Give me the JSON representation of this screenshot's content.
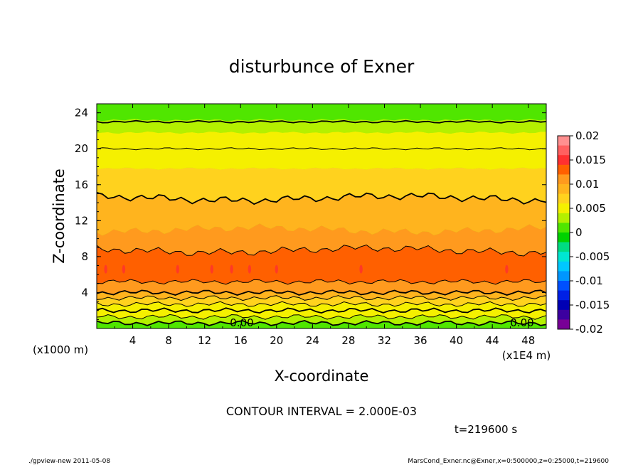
{
  "chart_data": {
    "type": "contour",
    "title": "disturbunce of Exner",
    "xlabel": "X-coordinate",
    "ylabel": "Z-coordinate",
    "x_units": "(x1E4 m)",
    "y_units": "(x1000 m)",
    "xlim": [
      0,
      50
    ],
    "ylim": [
      0,
      25
    ],
    "x_ticks": [
      4,
      8,
      12,
      16,
      20,
      24,
      28,
      32,
      36,
      40,
      44,
      48
    ],
    "y_ticks": [
      4,
      8,
      12,
      16,
      20,
      24
    ],
    "contour_interval_text": "CONTOUR INTERVAL = 2.000E-03",
    "time_text": "t=219600 s",
    "zero_labels": [
      "0.00",
      "0.00"
    ],
    "colorbar": {
      "ticks": [
        "0.02",
        "0.015",
        "0.01",
        "0.005",
        "0",
        "-0.005",
        "-0.01",
        "-0.015",
        "-0.02"
      ],
      "levels": [
        {
          "lo": 0.018,
          "hi": 0.02,
          "color": "#ff9090"
        },
        {
          "lo": 0.016,
          "hi": 0.018,
          "color": "#ff6060"
        },
        {
          "lo": 0.014,
          "hi": 0.016,
          "color": "#ff3030"
        },
        {
          "lo": 0.012,
          "hi": 0.014,
          "color": "#ff6000"
        },
        {
          "lo": 0.01,
          "hi": 0.012,
          "color": "#ff9a1e"
        },
        {
          "lo": 0.008,
          "hi": 0.01,
          "color": "#ffb41e"
        },
        {
          "lo": 0.006,
          "hi": 0.008,
          "color": "#ffd21e"
        },
        {
          "lo": 0.004,
          "hi": 0.006,
          "color": "#f5f000"
        },
        {
          "lo": 0.002,
          "hi": 0.004,
          "color": "#b4f000"
        },
        {
          "lo": 0.0,
          "hi": 0.002,
          "color": "#50e600"
        },
        {
          "lo": -0.002,
          "hi": 0.0,
          "color": "#00d200"
        },
        {
          "lo": -0.004,
          "hi": -0.002,
          "color": "#00dc82"
        },
        {
          "lo": -0.006,
          "hi": -0.004,
          "color": "#00e6d2"
        },
        {
          "lo": -0.008,
          "hi": -0.006,
          "color": "#00c8ff"
        },
        {
          "lo": -0.01,
          "hi": -0.008,
          "color": "#0096ff"
        },
        {
          "lo": -0.012,
          "hi": -0.01,
          "color": "#0050ff"
        },
        {
          "lo": -0.014,
          "hi": -0.012,
          "color": "#0020e6"
        },
        {
          "lo": -0.016,
          "hi": -0.014,
          "color": "#0000b4"
        },
        {
          "lo": -0.018,
          "hi": -0.016,
          "color": "#3c00a0"
        },
        {
          "lo": -0.02,
          "hi": -0.018,
          "color": "#780096"
        }
      ]
    },
    "field_bands": [
      {
        "z0": 0.0,
        "z1": 0.6,
        "value": 0.001
      },
      {
        "z0": 0.6,
        "z1": 1.3,
        "value": 0.003
      },
      {
        "z0": 1.3,
        "z1": 2.0,
        "value": 0.005
      },
      {
        "z0": 2.0,
        "z1": 2.7,
        "value": 0.005
      },
      {
        "z0": 2.7,
        "z1": 3.4,
        "value": 0.007
      },
      {
        "z0": 3.4,
        "z1": 4.0,
        "value": 0.009
      },
      {
        "z0": 4.0,
        "z1": 5.2,
        "value": 0.011
      },
      {
        "z0": 5.2,
        "z1": 8.7,
        "value": 0.013
      },
      {
        "z0": 8.7,
        "z1": 11.0,
        "value": 0.011
      },
      {
        "z0": 11.0,
        "z1": 14.5,
        "value": 0.009
      },
      {
        "z0": 14.5,
        "z1": 17.8,
        "value": 0.007
      },
      {
        "z0": 17.8,
        "z1": 20.0,
        "value": 0.005
      },
      {
        "z0": 20.0,
        "z1": 21.8,
        "value": 0.005
      },
      {
        "z0": 21.8,
        "z1": 23.2,
        "value": 0.003
      },
      {
        "z0": 23.2,
        "z1": 25.0,
        "value": 0.001
      }
    ],
    "contour_lines": [
      {
        "z": 0.6,
        "thick": true
      },
      {
        "z": 1.3,
        "thick": false
      },
      {
        "z": 2.0,
        "thick": true
      },
      {
        "z": 2.7,
        "thick": false
      },
      {
        "z": 3.4,
        "thick": false
      },
      {
        "z": 4.0,
        "thick": true
      },
      {
        "z": 5.2,
        "thick": false
      },
      {
        "z": 8.7,
        "thick": false
      },
      {
        "z": 14.5,
        "thick": true
      },
      {
        "z": 20.0,
        "thick": false
      },
      {
        "z": 23.0,
        "thick": true
      }
    ]
  },
  "footer": {
    "left": "./gpview-new  2011-05-08",
    "right": "MarsCond_Exner.nc@Exner,x=0:500000,z=0:25000,t=219600"
  }
}
